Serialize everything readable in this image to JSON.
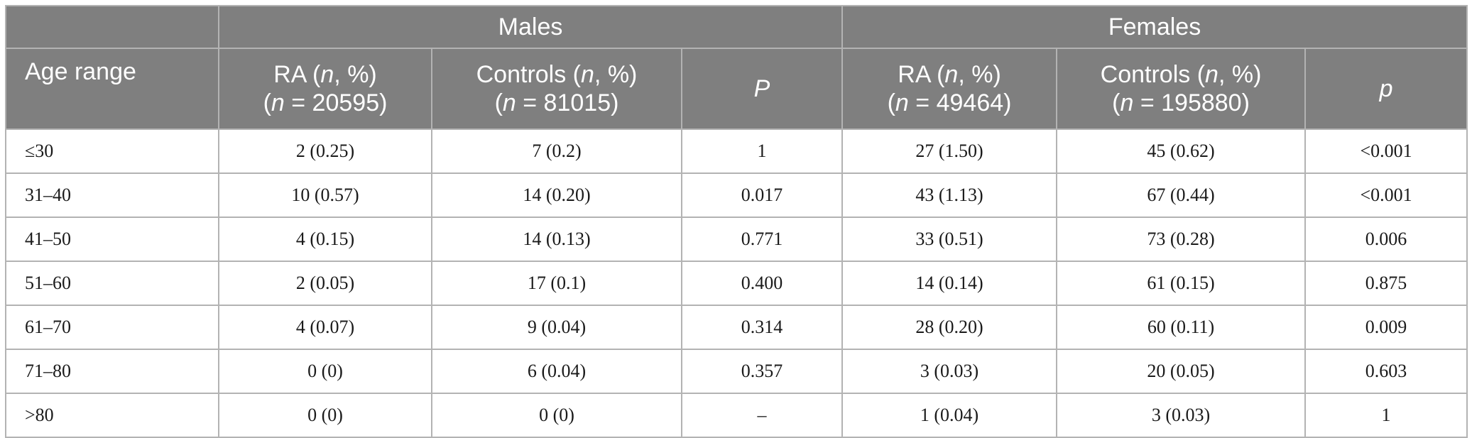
{
  "header": {
    "groups": [
      "Males",
      "Females"
    ],
    "age_label": "Age range",
    "columns": [
      {
        "pre": "RA (",
        "it": "n",
        "post": ", %)",
        "n_pre": "(",
        "n_it": "n",
        "n_post": " = 20595)"
      },
      {
        "pre": "Controls (",
        "it": "n",
        "post": ", %)",
        "n_pre": "(",
        "n_it": "n",
        "n_post": " = 81015)"
      },
      {
        "p": "P"
      },
      {
        "pre": "RA (",
        "it": "n",
        "post": ", %)",
        "n_pre": "(",
        "n_it": "n",
        "n_post": " = 49464)"
      },
      {
        "pre": "Controls (",
        "it": "n",
        "post": ", %)",
        "n_pre": "(",
        "n_it": "n",
        "n_post": " = 195880)"
      },
      {
        "p": "p"
      }
    ]
  },
  "rows": [
    {
      "age": "≤30",
      "m_ra": "2 (0.25)",
      "m_ctrl": "7 (0.2)",
      "m_p": "1",
      "f_ra": "27 (1.50)",
      "f_ctrl": "45 (0.62)",
      "f_p": "<0.001"
    },
    {
      "age": "31–40",
      "m_ra": "10 (0.57)",
      "m_ctrl": "14 (0.20)",
      "m_p": "0.017",
      "f_ra": "43 (1.13)",
      "f_ctrl": "67 (0.44)",
      "f_p": "<0.001"
    },
    {
      "age": "41–50",
      "m_ra": "4 (0.15)",
      "m_ctrl": "14 (0.13)",
      "m_p": "0.771",
      "f_ra": "33 (0.51)",
      "f_ctrl": "73 (0.28)",
      "f_p": "0.006"
    },
    {
      "age": "51–60",
      "m_ra": "2 (0.05)",
      "m_ctrl": "17 (0.1)",
      "m_p": "0.400",
      "f_ra": "14 (0.14)",
      "f_ctrl": "61 (0.15)",
      "f_p": "0.875"
    },
    {
      "age": "61–70",
      "m_ra": "4 (0.07)",
      "m_ctrl": "9 (0.04)",
      "m_p": "0.314",
      "f_ra": "28 (0.20)",
      "f_ctrl": "60 (0.11)",
      "f_p": "0.009"
    },
    {
      "age": "71–80",
      "m_ra": "0 (0)",
      "m_ctrl": "6 (0.04)",
      "m_p": "0.357",
      "f_ra": "3 (0.03)",
      "f_ctrl": "20 (0.05)",
      "f_p": "0.603"
    },
    {
      "age": ">80",
      "m_ra": "0 (0)",
      "m_ctrl": "0 (0)",
      "m_p": "–",
      "f_ra": "1 (0.04)",
      "f_ctrl": "3 (0.03)",
      "f_p": "1"
    }
  ],
  "colors": {
    "header_bg": "#7f7f7f",
    "header_text": "#ffffff",
    "border": "#b3b3b3",
    "body_text": "#1a1a1a"
  }
}
